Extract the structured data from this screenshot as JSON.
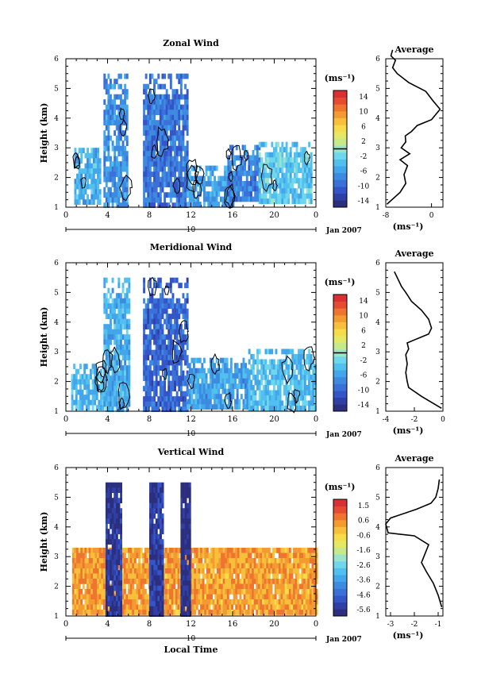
{
  "figure": {
    "xlabel": "Local Time",
    "date_label": "Jan 2007",
    "day_label": "10"
  },
  "colormap": [
    "#2b2f7e",
    "#2f3fa6",
    "#3355c8",
    "#3a70d8",
    "#3d8be0",
    "#43a6ea",
    "#52c0ee",
    "#6fd7ec",
    "#9ce4c9",
    "#c6ea8a",
    "#e4e864",
    "#f7dc4a",
    "#f7bf3a",
    "#f39a30",
    "#ee7430",
    "#e64a32",
    "#d93034"
  ],
  "chart_data": [
    {
      "type": "heatmap",
      "title": "Zonal Wind",
      "ylabel": "Height (km)",
      "unit_label": "(ms⁻¹)",
      "xlim": [
        0,
        24
      ],
      "x_ticks": [
        "0",
        "4",
        "8",
        "12",
        "16",
        "20",
        "0"
      ],
      "ylim": [
        1,
        6
      ],
      "y_ticks": [
        "1",
        "2",
        "3",
        "4",
        "5",
        "6"
      ],
      "colorbar_ticks": [
        "14",
        "10",
        "6",
        "2",
        "-2",
        "-6",
        "-10",
        "-14"
      ],
      "colorbar_range": [
        -16,
        16
      ],
      "zero_contour": 0,
      "columns": [
        {
          "x0": 0.8,
          "x1": 3.2,
          "ybot": 1.2,
          "ytop": 3.0,
          "value": -5
        },
        {
          "x0": 3.6,
          "x1": 5.8,
          "ybot": 1.1,
          "ytop": 5.5,
          "value": -7
        },
        {
          "x0": 7.4,
          "x1": 11.6,
          "ybot": 1.1,
          "ytop": 5.5,
          "value": -9
        },
        {
          "x0": 11.6,
          "x1": 16.0,
          "ybot": 1.1,
          "ytop": 2.4,
          "value": -6
        },
        {
          "x0": 15.5,
          "x1": 18.5,
          "ybot": 1.2,
          "ytop": 3.1,
          "value": -8
        },
        {
          "x0": 18.5,
          "x1": 23.5,
          "ybot": 1.2,
          "ytop": 3.2,
          "value": -3
        }
      ],
      "profile": {
        "title": "Average",
        "xlabel": "(ms⁻¹)",
        "x_ticks": [
          "-8",
          "0"
        ],
        "xlim": [
          -8,
          2
        ],
        "y_ticks": [
          "1",
          "2",
          "3",
          "4",
          "5",
          "6"
        ],
        "ylim": [
          1,
          6
        ],
        "x": [
          -7.8,
          -5.5,
          -4.5,
          -4.8,
          -4.2,
          -5.5,
          -3.8,
          -5.3,
          -4.5,
          -4.6,
          -3.5,
          -2.5,
          0.0,
          1.5,
          0.2,
          -1.0,
          -4.0,
          -6.0,
          -6.8,
          -6.3,
          -7.1,
          -6.8
        ],
        "y": [
          1.1,
          1.5,
          1.8,
          2.1,
          2.4,
          2.6,
          2.8,
          3.0,
          3.2,
          3.4,
          3.55,
          3.75,
          3.95,
          4.3,
          4.6,
          4.9,
          5.2,
          5.5,
          5.7,
          5.95,
          6.1,
          6.3
        ]
      }
    },
    {
      "type": "heatmap",
      "title": "Meridional Wind",
      "ylabel": "Height (km)",
      "unit_label": "(ms⁻¹)",
      "xlim": [
        0,
        24
      ],
      "x_ticks": [
        "0",
        "4",
        "8",
        "12",
        "16",
        "20",
        "0"
      ],
      "ylim": [
        1,
        6
      ],
      "y_ticks": [
        "1",
        "2",
        "3",
        "4",
        "5",
        "6"
      ],
      "colorbar_ticks": [
        "14",
        "10",
        "6",
        "2",
        "-2",
        "-6",
        "-10",
        "-14"
      ],
      "colorbar_range": [
        -16,
        16
      ],
      "zero_contour": 0,
      "columns": [
        {
          "x0": 0.5,
          "x1": 3.5,
          "ybot": 1.1,
          "ytop": 2.6,
          "value": -4
        },
        {
          "x0": 3.6,
          "x1": 6.0,
          "ybot": 1.1,
          "ytop": 5.5,
          "value": -5
        },
        {
          "x0": 7.4,
          "x1": 11.6,
          "ybot": 1.1,
          "ytop": 5.5,
          "value": -10
        },
        {
          "x0": 11.6,
          "x1": 17.5,
          "ybot": 1.1,
          "ytop": 2.8,
          "value": -6
        },
        {
          "x0": 17.5,
          "x1": 24.0,
          "ybot": 1.1,
          "ytop": 3.1,
          "value": -4
        }
      ],
      "profile": {
        "title": "Average",
        "xlabel": "(ms⁻¹)",
        "x_ticks": [
          "-4",
          "-2",
          "0"
        ],
        "xlim": [
          -4,
          0
        ],
        "y_ticks": [
          "1",
          "2",
          "3",
          "4",
          "5",
          "6"
        ],
        "ylim": [
          1,
          6
        ],
        "x": [
          -0.1,
          -1.5,
          -2.4,
          -2.5,
          -2.6,
          -2.5,
          -2.6,
          -2.4,
          -2.5,
          -2.0,
          -1.5,
          -1.0,
          -0.8,
          -1.0,
          -1.5,
          -2.2,
          -2.6,
          -2.9,
          -3.1,
          -3.4
        ],
        "y": [
          1.1,
          1.5,
          1.8,
          2.0,
          2.3,
          2.6,
          2.9,
          3.1,
          3.3,
          3.4,
          3.5,
          3.6,
          3.8,
          4.1,
          4.4,
          4.7,
          5.0,
          5.2,
          5.4,
          5.7
        ]
      }
    },
    {
      "type": "heatmap",
      "title": "Vertical Wind",
      "ylabel": "Height (km)",
      "unit_label": "(ms⁻¹)",
      "xlim": [
        0,
        24
      ],
      "x_ticks": [
        "0",
        "4",
        "8",
        "12",
        "16",
        "20",
        "0"
      ],
      "ylim": [
        1,
        6
      ],
      "y_ticks": [
        "1",
        "2",
        "3",
        "4",
        "5",
        "6"
      ],
      "colorbar_ticks": [
        "1.5",
        "0.6",
        "-0.6",
        "-1.6",
        "-2.6",
        "-3.6",
        "-4.6",
        "-5.6"
      ],
      "colorbar_range": [
        -6,
        2
      ],
      "columns": [
        {
          "x0": 0.6,
          "x1": 24.0,
          "ybot": 1.1,
          "ytop": 3.3,
          "value": 0.3
        },
        {
          "x0": 3.8,
          "x1": 5.2,
          "ybot": 1.1,
          "ytop": 5.5,
          "value": -5.6
        },
        {
          "x0": 8.0,
          "x1": 9.2,
          "ybot": 1.1,
          "ytop": 5.5,
          "value": -5.4
        },
        {
          "x0": 11.0,
          "x1": 11.8,
          "ybot": 1.1,
          "ytop": 5.5,
          "value": -5.8
        }
      ],
      "profile": {
        "title": "Average",
        "xlabel": "(ms⁻¹)",
        "x_ticks": [
          "-3",
          "-2",
          "-1"
        ],
        "xlim": [
          -3.2,
          -0.8
        ],
        "y_ticks": [
          "1",
          "2",
          "3",
          "4",
          "5",
          "6"
        ],
        "ylim": [
          1,
          6
        ],
        "x": [
          -0.85,
          -1.0,
          -1.2,
          -1.5,
          -1.7,
          -1.6,
          -1.5,
          -1.4,
          -2.0,
          -3.1,
          -3.2,
          -3.0,
          -1.9,
          -1.3,
          -1.1,
          -1.0,
          -0.95
        ],
        "y": [
          1.3,
          1.7,
          2.1,
          2.5,
          2.8,
          3.0,
          3.2,
          3.4,
          3.7,
          3.8,
          4.1,
          4.3,
          4.6,
          4.8,
          5.0,
          5.3,
          5.6
        ]
      }
    }
  ]
}
